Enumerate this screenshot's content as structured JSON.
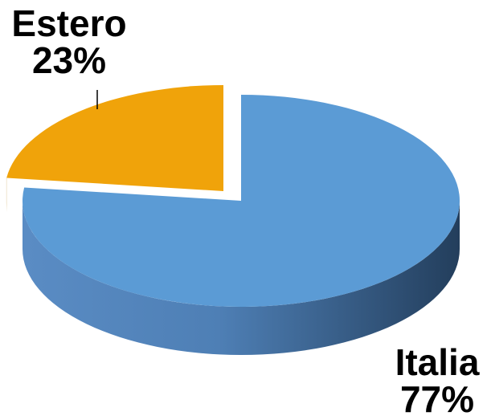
{
  "chart_data": {
    "type": "pie",
    "style": "3d",
    "title": "",
    "slices": [
      {
        "label": "Italia",
        "value": 77,
        "value_text": "77%",
        "color": "#5b9bd5"
      },
      {
        "label": "Estero",
        "value": 23,
        "value_text": "23%",
        "color": "#f0a30a",
        "exploded": true
      }
    ],
    "legend": "none"
  }
}
